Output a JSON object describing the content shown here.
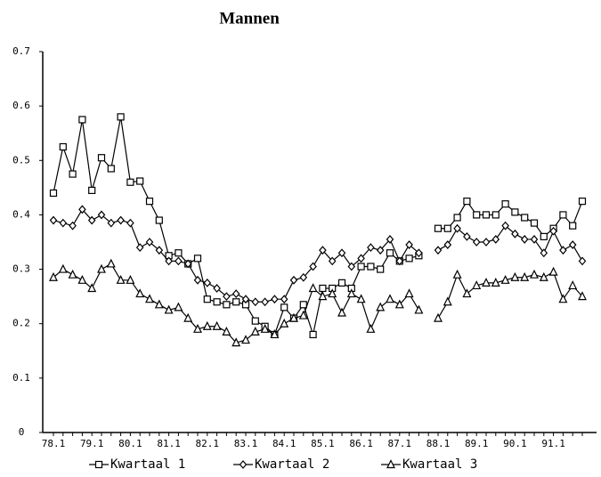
{
  "chart_data": {
    "type": "line",
    "title": "Mannen",
    "categories": [
      "78.1",
      null,
      null,
      null,
      "79.1",
      null,
      null,
      null,
      "80.1",
      null,
      null,
      null,
      "81.1",
      null,
      null,
      null,
      "82.1",
      null,
      null,
      null,
      "83.1",
      null,
      null,
      null,
      "84.1",
      null,
      null,
      null,
      "85.1",
      null,
      null,
      null,
      "86.1",
      null,
      null,
      null,
      "87.1",
      null,
      null,
      null,
      "88.1",
      null,
      null,
      null,
      "89.1",
      null,
      null,
      null,
      "90.1",
      null,
      null,
      null,
      "91.1",
      null,
      null,
      null
    ],
    "series": [
      {
        "name": "Kwartaal 1",
        "color": "#000000",
        "marker": "square",
        "values": [
          0.44,
          0.525,
          0.475,
          0.575,
          0.445,
          0.505,
          0.485,
          0.58,
          0.46,
          0.462,
          0.425,
          0.39,
          0.325,
          0.33,
          0.31,
          0.32,
          0.245,
          0.24,
          0.235,
          0.24,
          0.235,
          0.205,
          0.195,
          0.18,
          0.23,
          0.21,
          0.235,
          0.18,
          0.265,
          0.265,
          0.275,
          0.265,
          0.305,
          0.305,
          0.3,
          0.33,
          0.315,
          0.32,
          0.325,
          null,
          0.375,
          0.375,
          0.395,
          0.425,
          0.4,
          0.4,
          0.4,
          0.42,
          0.405,
          0.395,
          0.385,
          0.36,
          0.375,
          0.4,
          0.38,
          0.425
        ]
      },
      {
        "name": "Kwartaal 2",
        "color": "#000000",
        "marker": "diamond",
        "values": [
          0.39,
          0.385,
          0.38,
          0.41,
          0.39,
          0.4,
          0.385,
          0.39,
          0.385,
          0.34,
          0.35,
          0.335,
          0.315,
          0.315,
          0.31,
          0.28,
          0.275,
          0.265,
          0.25,
          0.255,
          0.245,
          0.24,
          0.24,
          0.245,
          0.245,
          0.28,
          0.285,
          0.305,
          0.335,
          0.315,
          0.33,
          0.305,
          0.32,
          0.34,
          0.335,
          0.355,
          0.315,
          0.345,
          0.33,
          null,
          0.335,
          0.345,
          0.375,
          0.36,
          0.35,
          0.35,
          0.355,
          0.38,
          0.365,
          0.355,
          0.355,
          0.33,
          0.37,
          0.335,
          0.345,
          0.315
        ]
      },
      {
        "name": "Kwartaal 3",
        "color": "#000000",
        "marker": "triangle",
        "values": [
          0.285,
          0.3,
          0.29,
          0.28,
          0.265,
          0.3,
          0.31,
          0.28,
          0.28,
          0.255,
          0.245,
          0.235,
          0.225,
          0.23,
          0.21,
          0.19,
          0.195,
          0.195,
          0.185,
          0.165,
          0.17,
          0.185,
          0.19,
          0.18,
          0.2,
          0.21,
          0.215,
          0.265,
          0.25,
          0.255,
          0.22,
          0.255,
          0.245,
          0.19,
          0.23,
          0.245,
          0.235,
          0.255,
          0.225,
          null,
          0.21,
          0.24,
          0.29,
          0.255,
          0.27,
          0.275,
          0.275,
          0.28,
          0.285,
          0.285,
          0.29,
          0.285,
          0.295,
          0.245,
          0.27,
          0.25
        ]
      }
    ],
    "ylim": [
      0,
      0.7
    ],
    "yticks": [
      0,
      0.1,
      0.2,
      0.3,
      0.4,
      0.5,
      0.6,
      0.7
    ],
    "grid": false
  }
}
